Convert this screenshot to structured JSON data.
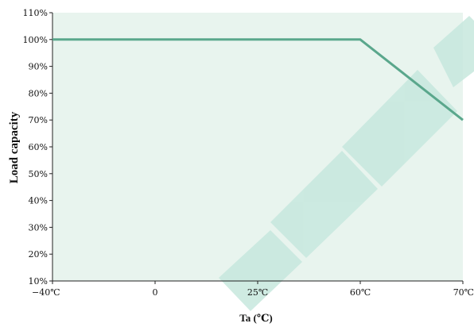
{
  "chart_data": {
    "type": "line",
    "xlabel": "Ta (℃)",
    "ylabel": "Load capacity",
    "x_ticks": [
      {
        "value": -40,
        "label": "−40℃"
      },
      {
        "value": 0,
        "label": "0"
      },
      {
        "value": 25,
        "label": "25℃"
      },
      {
        "value": 60,
        "label": "60℃"
      },
      {
        "value": 70,
        "label": "70℃"
      }
    ],
    "y_ticks": [
      {
        "value": 10,
        "label": "10%"
      },
      {
        "value": 20,
        "label": "20%"
      },
      {
        "value": 30,
        "label": "30%"
      },
      {
        "value": 40,
        "label": "40%"
      },
      {
        "value": 50,
        "label": "50%"
      },
      {
        "value": 60,
        "label": "60%"
      },
      {
        "value": 70,
        "label": "70%"
      },
      {
        "value": 80,
        "label": "80%"
      },
      {
        "value": 90,
        "label": "90%"
      },
      {
        "value": 100,
        "label": "100%"
      },
      {
        "value": 110,
        "label": "110%"
      }
    ],
    "xlim": [
      -40,
      70
    ],
    "ylim": [
      10,
      110
    ],
    "grid": false,
    "series": [
      {
        "x": [
          -40,
          60,
          70
        ],
        "y": [
          100,
          100,
          70
        ],
        "color": "#5aa78c"
      }
    ],
    "plot_background": "#e8f4ee"
  }
}
